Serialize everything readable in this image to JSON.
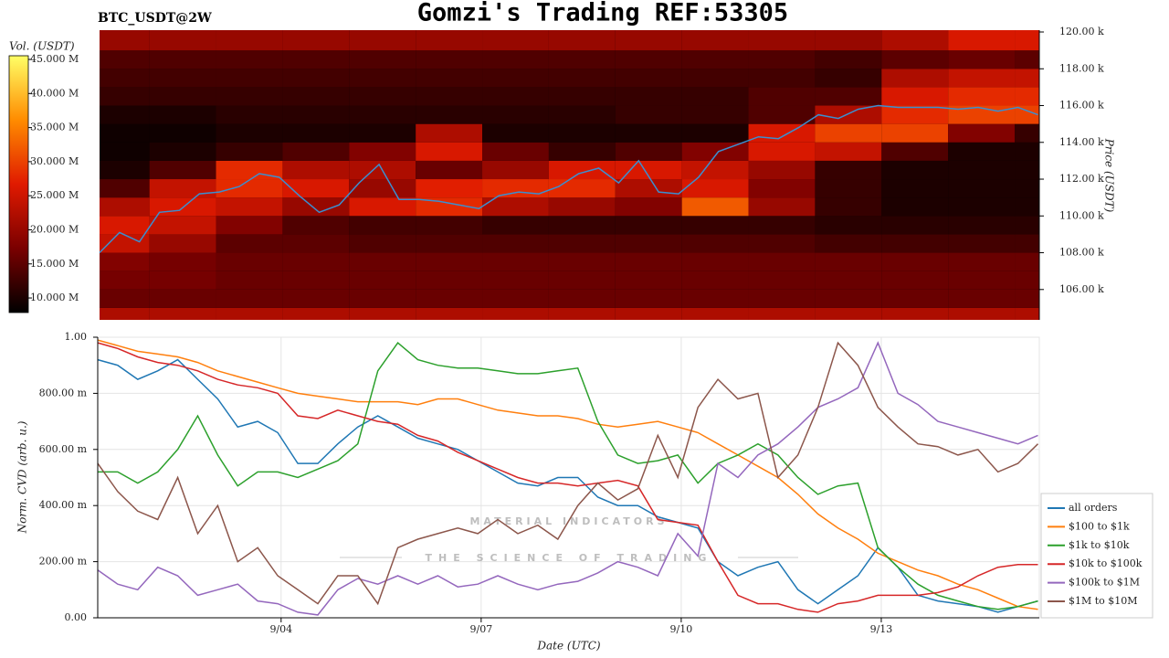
{
  "header": {
    "title": "Gomzi's Trading REF:53305"
  },
  "watermark": [
    "MATERIAL INDICATORS",
    "THE SCIENCE OF TRADING"
  ],
  "chart_data": [
    {
      "type": "heatmap",
      "title": "BTC_USDT@2W",
      "ylabel": "Price (USDT)",
      "xlim": [
        1.25,
        15.37
      ],
      "ylim": [
        104350,
        120100
      ],
      "yticks": [
        {
          "value": 106000,
          "label": "106.00 k"
        },
        {
          "value": 108000,
          "label": "108.00 k"
        },
        {
          "value": 110000,
          "label": "110.00 k"
        },
        {
          "value": 112000,
          "label": "112.00 k"
        },
        {
          "value": 114000,
          "label": "114.00 k"
        },
        {
          "value": 116000,
          "label": "116.00 k"
        },
        {
          "value": 118000,
          "label": "118.00 k"
        },
        {
          "value": 120000,
          "label": "120.00 k"
        }
      ],
      "colorbar": {
        "label": "Vol. (USDT)",
        "lim": [
          7860000,
          45540000
        ],
        "ticks": [
          {
            "value": 10000000,
            "label": "10.000 M"
          },
          {
            "value": 15000000,
            "label": "15.000 M"
          },
          {
            "value": 20000000,
            "label": "20.000 M"
          },
          {
            "value": 25000000,
            "label": "25.000 M"
          },
          {
            "value": 30000000,
            "label": "30.000 M"
          },
          {
            "value": 35000000,
            "label": "35.000 M"
          },
          {
            "value": 40000000,
            "label": "40.000 M"
          },
          {
            "value": 45000000,
            "label": "45.000 M"
          }
        ],
        "colors": [
          "#000000",
          "#7a0000",
          "#e01a00",
          "#ff8c00",
          "#ffff66"
        ]
      },
      "x_edges": [
        1.25,
        2,
        3,
        4,
        5,
        6,
        7,
        8,
        9,
        10,
        11,
        12,
        13,
        14,
        15,
        15.37
      ],
      "y_edges": [
        104350,
        105000,
        106000,
        107000,
        108000,
        109000,
        110000,
        111000,
        112000,
        113000,
        114000,
        115000,
        116000,
        117000,
        118000,
        119000,
        120100
      ],
      "z": [
        [
          22000000.0,
          22000000.0,
          22000000.0,
          22000000.0,
          22000000.0,
          22000000.0,
          22000000.0,
          22000000.0,
          22000000.0,
          22000000.0,
          22000000.0,
          22000000.0,
          22000000.0,
          22000000.0,
          22000000.0
        ],
        [
          16000000.0,
          16000000.0,
          16000000.0,
          16000000.0,
          16000000.0,
          16000000.0,
          16000000.0,
          16000000.0,
          16000000.0,
          16000000.0,
          16000000.0,
          16000000.0,
          16000000.0,
          16000000.0,
          16000000.0
        ],
        [
          17000000.0,
          17000000.0,
          16000000.0,
          16000000.0,
          16000000.0,
          16000000.0,
          16000000.0,
          16000000.0,
          16000000.0,
          16000000.0,
          16000000.0,
          16000000.0,
          16000000.0,
          16000000.0,
          16000000.0
        ],
        [
          18000000.0,
          17000000.0,
          16000000.0,
          16000000.0,
          16000000.0,
          16000000.0,
          16000000.0,
          16000000.0,
          16000000.0,
          16000000.0,
          16000000.0,
          16000000.0,
          16000000.0,
          16000000.0,
          16000000.0
        ],
        [
          24000000.0,
          20000000.0,
          15000000.0,
          15000000.0,
          14000000.0,
          14000000.0,
          14000000.0,
          14000000.0,
          14000000.0,
          14000000.0,
          14000000.0,
          13000000.0,
          13000000.0,
          13000000.0,
          13000000.0
        ],
        [
          26000000.0,
          24000000.0,
          18000000.0,
          14000000.0,
          13000000.0,
          13000000.0,
          12000000.0,
          12000000.0,
          12000000.0,
          12000000.0,
          12000000.0,
          11000000.0,
          11000000.0,
          11000000.0,
          11000000.0
        ],
        [
          22000000.0,
          26000000.0,
          24000000.0,
          20000000.0,
          26000000.0,
          28000000.0,
          22000000.0,
          20000000.0,
          18000000.0,
          32000000.0,
          20000000.0,
          12000000.0,
          10000000.0,
          10000000.0,
          10000000.0
        ],
        [
          14000000.0,
          24000000.0,
          28000000.0,
          26000000.0,
          20000000.0,
          27000000.0,
          28000000.0,
          28000000.0,
          22000000.0,
          26000000.0,
          18000000.0,
          12000000.0,
          10000000.0,
          10000000.0,
          10000000.0
        ],
        [
          10000000.0,
          14000000.0,
          28000000.0,
          22000000.0,
          22000000.0,
          16000000.0,
          20000000.0,
          26000000.0,
          26000000.0,
          24000000.0,
          20000000.0,
          12000000.0,
          10000000.0,
          10000000.0,
          10000000.0
        ],
        [
          9000000.0,
          10000000.0,
          12000000.0,
          14000000.0,
          18000000.0,
          26000000.0,
          16000000.0,
          12000000.0,
          14000000.0,
          18000000.0,
          26000000.0,
          24000000.0,
          14000000.0,
          10000000.0,
          10000000.0
        ],
        [
          9000000.0,
          9000000.0,
          10000000.0,
          10000000.0,
          10000000.0,
          22000000.0,
          10000000.0,
          10000000.0,
          10000000.0,
          10000000.0,
          26000000.0,
          30000000.0,
          30000000.0,
          18000000.0,
          12000000.0
        ],
        [
          10000000.0,
          10000000.0,
          11000000.0,
          11000000.0,
          11000000.0,
          11000000.0,
          11000000.0,
          11000000.0,
          12000000.0,
          12000000.0,
          14000000.0,
          22000000.0,
          28000000.0,
          30000000.0,
          30000000.0
        ],
        [
          12000000.0,
          12000000.0,
          12000000.0,
          12000000.0,
          12000000.0,
          12000000.0,
          12000000.0,
          12000000.0,
          12000000.0,
          12000000.0,
          14000000.0,
          14000000.0,
          26000000.0,
          28000000.0,
          28000000.0
        ],
        [
          13000000.0,
          13000000.0,
          13000000.0,
          13000000.0,
          13000000.0,
          13000000.0,
          13000000.0,
          13000000.0,
          13000000.0,
          13000000.0,
          13000000.0,
          12000000.0,
          22000000.0,
          24000000.0,
          24000000.0
        ],
        [
          14000000.0,
          14000000.0,
          14000000.0,
          14000000.0,
          14000000.0,
          14000000.0,
          14000000.0,
          14000000.0,
          14000000.0,
          14000000.0,
          14000000.0,
          13000000.0,
          15000000.0,
          16000000.0,
          15000000.0
        ],
        [
          20000000.0,
          20000000.0,
          20000000.0,
          20000000.0,
          20000000.0,
          20000000.0,
          20000000.0,
          20000000.0,
          20000000.0,
          20000000.0,
          20000000.0,
          20000000.0,
          22000000.0,
          26000000.0,
          26000000.0
        ]
      ],
      "x": [
        1.25,
        1.55,
        1.85,
        2.15,
        2.45,
        2.75,
        3.05,
        3.35,
        3.65,
        3.95,
        4.25,
        4.55,
        4.85,
        5.15,
        5.45,
        5.75,
        6.05,
        6.35,
        6.65,
        6.95,
        7.25,
        7.55,
        7.85,
        8.15,
        8.45,
        8.75,
        9.05,
        9.35,
        9.65,
        9.95,
        10.25,
        10.55,
        10.85,
        11.15,
        11.45,
        11.75,
        12.05,
        12.35,
        12.65,
        12.95,
        13.25,
        13.55,
        13.85,
        14.15,
        14.45,
        14.75,
        15.05,
        15.35
      ],
      "series": [
        {
          "color": "#3b8fd0",
          "values": [
            108000,
            109100,
            108600,
            110200,
            110300,
            111200,
            111300,
            111600,
            112300,
            112100,
            111100,
            110200,
            110600,
            111800,
            112800,
            110900,
            110900,
            110800,
            110600,
            110400,
            111100,
            111300,
            111200,
            111600,
            112300,
            112600,
            111800,
            113000,
            111300,
            111200,
            112100,
            113500,
            113900,
            114300,
            114200,
            114800,
            115500,
            115300,
            115800,
            116000,
            115900,
            115900,
            115900,
            115800,
            115900,
            115700,
            115900,
            115500
          ]
        }
      ]
    },
    {
      "type": "line",
      "xlabel": "Date (UTC)",
      "ylabel": "Norm. CVD (arb. u.)",
      "grid": true,
      "legend": "lower right",
      "xlim": [
        1.25,
        15.37
      ],
      "ylim": [
        0,
        1
      ],
      "xticks": [
        {
          "value": 4,
          "label": "9/04"
        },
        {
          "value": 7,
          "label": "9/07"
        },
        {
          "value": 10,
          "label": "9/10"
        },
        {
          "value": 13,
          "label": "9/13"
        }
      ],
      "yticks": [
        {
          "value": 0,
          "label": "0.00"
        },
        {
          "value": 0.2,
          "label": "200.00 m"
        },
        {
          "value": 0.4,
          "label": "400.00 m"
        },
        {
          "value": 0.6,
          "label": "600.00 m"
        },
        {
          "value": 0.8,
          "label": "800.00 m"
        },
        {
          "value": 1,
          "label": "1.00"
        }
      ],
      "x": [
        1.25,
        1.55,
        1.85,
        2.15,
        2.45,
        2.75,
        3.05,
        3.35,
        3.65,
        3.95,
        4.25,
        4.55,
        4.85,
        5.15,
        5.45,
        5.75,
        6.05,
        6.35,
        6.65,
        6.95,
        7.25,
        7.55,
        7.85,
        8.15,
        8.45,
        8.75,
        9.05,
        9.35,
        9.65,
        9.95,
        10.25,
        10.55,
        10.85,
        11.15,
        11.45,
        11.75,
        12.05,
        12.35,
        12.65,
        12.95,
        13.25,
        13.55,
        13.85,
        14.15,
        14.45,
        14.75,
        15.05,
        15.35
      ],
      "series": [
        {
          "name": "all orders",
          "color": "#1f77b4",
          "values": [
            0.92,
            0.9,
            0.85,
            0.88,
            0.92,
            0.85,
            0.78,
            0.68,
            0.7,
            0.66,
            0.55,
            0.55,
            0.62,
            0.68,
            0.72,
            0.68,
            0.64,
            0.62,
            0.6,
            0.56,
            0.52,
            0.48,
            0.47,
            0.5,
            0.5,
            0.43,
            0.4,
            0.4,
            0.36,
            0.34,
            0.32,
            0.2,
            0.15,
            0.18,
            0.2,
            0.1,
            0.05,
            0.1,
            0.15,
            0.25,
            0.18,
            0.08,
            0.06,
            0.05,
            0.04,
            0.02,
            0.04,
            0.06
          ]
        },
        {
          "name": "$100 to $1k",
          "color": "#ff7f0e",
          "values": [
            0.99,
            0.97,
            0.95,
            0.94,
            0.93,
            0.91,
            0.88,
            0.86,
            0.84,
            0.82,
            0.8,
            0.79,
            0.78,
            0.77,
            0.77,
            0.77,
            0.76,
            0.78,
            0.78,
            0.76,
            0.74,
            0.73,
            0.72,
            0.72,
            0.71,
            0.69,
            0.68,
            0.69,
            0.7,
            0.68,
            0.66,
            0.62,
            0.58,
            0.54,
            0.5,
            0.44,
            0.37,
            0.32,
            0.28,
            0.23,
            0.2,
            0.17,
            0.15,
            0.12,
            0.1,
            0.07,
            0.04,
            0.03
          ]
        },
        {
          "name": "$1k to $10k",
          "color": "#2ca02c",
          "values": [
            0.52,
            0.52,
            0.48,
            0.52,
            0.6,
            0.72,
            0.58,
            0.47,
            0.52,
            0.52,
            0.5,
            0.53,
            0.56,
            0.62,
            0.88,
            0.98,
            0.92,
            0.9,
            0.89,
            0.89,
            0.88,
            0.87,
            0.87,
            0.88,
            0.89,
            0.7,
            0.58,
            0.55,
            0.56,
            0.58,
            0.48,
            0.55,
            0.58,
            0.62,
            0.58,
            0.5,
            0.44,
            0.47,
            0.48,
            0.25,
            0.18,
            0.12,
            0.08,
            0.06,
            0.04,
            0.03,
            0.04,
            0.06
          ]
        },
        {
          "name": "$10k to $100k",
          "color": "#d62728",
          "values": [
            0.98,
            0.96,
            0.93,
            0.91,
            0.9,
            0.88,
            0.85,
            0.83,
            0.82,
            0.8,
            0.72,
            0.71,
            0.74,
            0.72,
            0.7,
            0.69,
            0.65,
            0.63,
            0.59,
            0.56,
            0.53,
            0.5,
            0.48,
            0.48,
            0.47,
            0.48,
            0.49,
            0.47,
            0.35,
            0.34,
            0.33,
            0.2,
            0.08,
            0.05,
            0.05,
            0.03,
            0.02,
            0.05,
            0.06,
            0.08,
            0.08,
            0.08,
            0.09,
            0.11,
            0.15,
            0.18,
            0.19,
            0.19
          ]
        },
        {
          "name": "$100k to $1M",
          "color": "#9467bd",
          "values": [
            0.17,
            0.12,
            0.1,
            0.18,
            0.15,
            0.08,
            0.1,
            0.12,
            0.06,
            0.05,
            0.02,
            0.01,
            0.1,
            0.14,
            0.12,
            0.15,
            0.12,
            0.15,
            0.11,
            0.12,
            0.15,
            0.12,
            0.1,
            0.12,
            0.13,
            0.16,
            0.2,
            0.18,
            0.15,
            0.3,
            0.22,
            0.55,
            0.5,
            0.58,
            0.62,
            0.68,
            0.75,
            0.78,
            0.82,
            0.98,
            0.8,
            0.76,
            0.7,
            0.68,
            0.66,
            0.64,
            0.62,
            0.65
          ]
        },
        {
          "name": "$1M to $10M",
          "color": "#8c564b",
          "values": [
            0.55,
            0.45,
            0.38,
            0.35,
            0.5,
            0.3,
            0.4,
            0.2,
            0.25,
            0.15,
            0.1,
            0.05,
            0.15,
            0.15,
            0.05,
            0.25,
            0.28,
            0.3,
            0.32,
            0.3,
            0.35,
            0.3,
            0.33,
            0.28,
            0.4,
            0.48,
            0.42,
            0.46,
            0.65,
            0.5,
            0.75,
            0.85,
            0.78,
            0.8,
            0.5,
            0.58,
            0.75,
            0.98,
            0.9,
            0.75,
            0.68,
            0.62,
            0.61,
            0.58,
            0.6,
            0.52,
            0.55,
            0.62
          ]
        }
      ]
    }
  ]
}
